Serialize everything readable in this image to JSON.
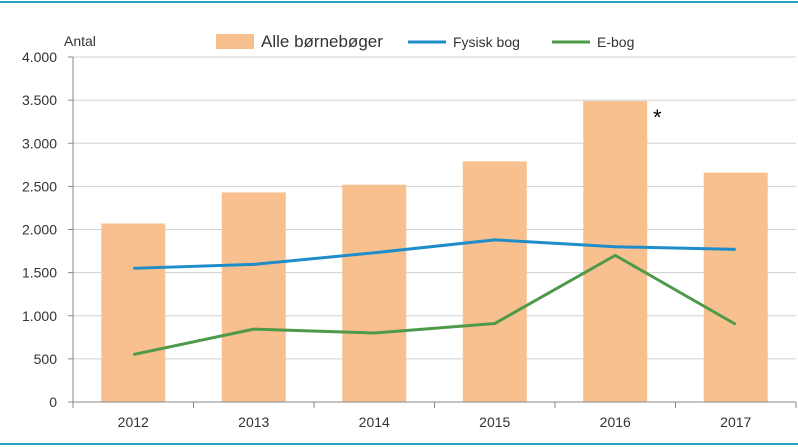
{
  "chart_data": {
    "type": "bar",
    "title": "",
    "xlabel": "",
    "ylabel": "Antal",
    "ylim": [
      0,
      4000
    ],
    "yticks": [
      0,
      500,
      1000,
      1500,
      2000,
      2500,
      3000,
      3500,
      4000
    ],
    "ytick_labels": [
      "0",
      "500",
      "1.000",
      "1.500",
      "2.000",
      "2.500",
      "3.000",
      "3.500",
      "4.000"
    ],
    "categories": [
      "2012",
      "2013",
      "2014",
      "2015",
      "2016",
      "2017"
    ],
    "grid": "horizontal",
    "legend_position": "top",
    "series": [
      {
        "name": "Alle børnebøger",
        "type": "bar",
        "color": "#F9C08F",
        "values": [
          2070,
          2430,
          2520,
          2790,
          3490,
          2660
        ]
      },
      {
        "name": "Fysisk bog",
        "type": "line",
        "color": "#1F8DC9",
        "values": [
          1550,
          1595,
          1730,
          1880,
          1800,
          1770
        ]
      },
      {
        "name": "E-bog",
        "type": "line",
        "color": "#4E9A4A",
        "values": [
          550,
          845,
          800,
          910,
          1700,
          900
        ]
      }
    ],
    "annotations": [
      {
        "category": "2016",
        "text": "*"
      }
    ]
  },
  "colors": {
    "border": "#2AA3C8",
    "grid": "#D0D0D0",
    "axis": "#888888"
  }
}
